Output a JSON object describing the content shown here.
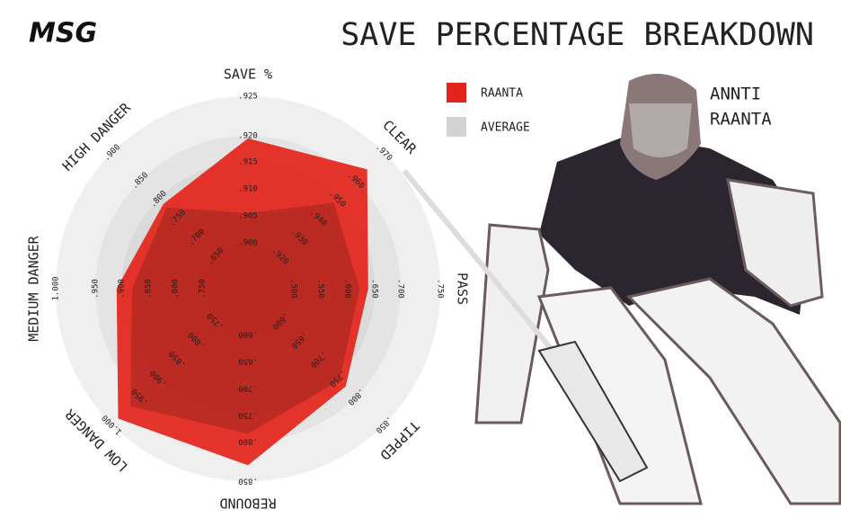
{
  "chart_data": {
    "type": "radar",
    "logo": "MSG",
    "title": "SAVE PERCENTAGE BREAKDOWN",
    "player_name": [
      "ANNTI",
      "RAANTA"
    ],
    "categories": [
      "SAVE %",
      "CLEAR",
      "PASS",
      "TIPPED",
      "REBOUND",
      "LOW DANGER",
      "MEDIUM DANGER",
      "HIGH DANGER"
    ],
    "axis_ticks": [
      [
        {
          "value": 0.9,
          "label": ".900"
        },
        {
          "value": 0.905,
          "label": ".905"
        },
        {
          "value": 0.91,
          "label": ".910"
        },
        {
          "value": 0.915,
          "label": ".915"
        },
        {
          "value": 0.92,
          "label": ".920"
        },
        {
          "value": 0.925,
          "label": ".925"
        }
      ],
      [
        {
          "value": 0.92,
          "label": ".920"
        },
        {
          "value": 0.93,
          "label": ".930"
        },
        {
          "value": 0.94,
          "label": ".940"
        },
        {
          "value": 0.95,
          "label": ".950"
        },
        {
          "value": 0.96,
          "label": ".960"
        },
        {
          "value": 0.97,
          "label": ".970"
        }
      ],
      [
        {
          "value": 0.5,
          "label": ".500"
        },
        {
          "value": 0.55,
          "label": ".550"
        },
        {
          "value": 0.6,
          "label": ".600"
        },
        {
          "value": 0.65,
          "label": ".650"
        },
        {
          "value": 0.7,
          "label": ".700"
        },
        {
          "value": 0.75,
          "label": ".750"
        }
      ],
      [
        {
          "value": 0.6,
          "label": ".600"
        },
        {
          "value": 0.65,
          "label": ".650"
        },
        {
          "value": 0.7,
          "label": ".700"
        },
        {
          "value": 0.75,
          "label": ".750"
        },
        {
          "value": 0.8,
          "label": ".800"
        },
        {
          "value": 0.85,
          "label": ".850"
        }
      ],
      [
        {
          "value": 0.6,
          "label": ".600"
        },
        {
          "value": 0.65,
          "label": ".650"
        },
        {
          "value": 0.7,
          "label": ".700"
        },
        {
          "value": 0.75,
          "label": ".750"
        },
        {
          "value": 0.8,
          "label": ".800"
        },
        {
          "value": 0.85,
          "label": ".850"
        }
      ],
      [
        {
          "value": 0.75,
          "label": ".750"
        },
        {
          "value": 0.8,
          "label": ".800"
        },
        {
          "value": 0.85,
          "label": ".850"
        },
        {
          "value": 0.9,
          "label": ".900"
        },
        {
          "value": 0.95,
          "label": ".950"
        },
        {
          "value": 1,
          "label": "1.000"
        }
      ],
      [
        {
          "value": 0.75,
          "label": ".750"
        },
        {
          "value": 0.8,
          "label": ".800"
        },
        {
          "value": 0.85,
          "label": ".850"
        },
        {
          "value": 0.9,
          "label": ".900"
        },
        {
          "value": 0.95,
          "label": ".950"
        },
        {
          "value": 1,
          "label": "1.000"
        }
      ],
      [
        {
          "value": 0.65,
          "label": ".650"
        },
        {
          "value": 0.7,
          "label": ".700"
        },
        {
          "value": 0.75,
          "label": ".750"
        },
        {
          "value": 0.8,
          "label": ".800"
        },
        {
          "value": 0.85,
          "label": ".850"
        },
        {
          "value": 0.9,
          "label": ".900"
        }
      ]
    ],
    "series": [
      {
        "name": "RAANTA",
        "color": "#e3241b",
        "values": [
          0.9195,
          0.964,
          0.638,
          0.772,
          0.83,
          0.989,
          0.909,
          0.787
        ]
      },
      {
        "name": "AVERAGE",
        "color": "#d3d3d3",
        "values": [
          0.9055,
          0.948,
          0.622,
          0.755,
          0.785,
          0.967,
          0.88,
          0.778
        ]
      }
    ]
  }
}
